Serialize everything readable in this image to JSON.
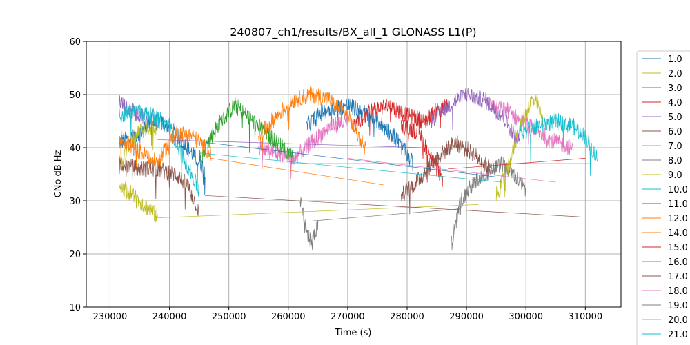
{
  "chart_data": {
    "type": "line",
    "title": "240807_ch1/results/BX_all_1 GLONASS L1(P)",
    "xlabel": "Time (s)",
    "ylabel": "CNo dB Hz",
    "xlim": [
      226000,
      316000
    ],
    "ylim": [
      10,
      60
    ],
    "xticks": [
      230000,
      240000,
      250000,
      260000,
      270000,
      280000,
      290000,
      300000,
      310000
    ],
    "yticks": [
      10,
      20,
      30,
      40,
      50,
      60
    ],
    "grid": true,
    "legend": "right",
    "series": [
      {
        "name": "1.0",
        "color": "#1f77b4",
        "points": [
          [
            231500,
            41
          ],
          [
            234000,
            42
          ],
          [
            236000,
            44
          ],
          [
            238000,
            45
          ],
          [
            240000,
            44
          ],
          [
            243000,
            40
          ],
          [
            246000,
            36
          ]
        ]
      },
      {
        "name": "2.0",
        "color": "#bcbd22",
        "points": [
          [
            231500,
            36
          ],
          [
            233000,
            40
          ],
          [
            235000,
            43
          ],
          [
            237000,
            44
          ],
          [
            238000,
            44
          ]
        ]
      },
      {
        "name": "3.0",
        "color": "#2ca02c",
        "points": [
          [
            245000,
            38
          ],
          [
            248000,
            44
          ],
          [
            251000,
            48
          ],
          [
            253000,
            46
          ],
          [
            256000,
            43
          ],
          [
            259000,
            40
          ],
          [
            261000,
            38
          ]
        ]
      },
      {
        "name": "4.0",
        "color": "#d62728",
        "points": [
          [
            271000,
            44
          ],
          [
            274000,
            47
          ],
          [
            277000,
            48
          ],
          [
            280000,
            46
          ],
          [
            283000,
            45
          ],
          [
            285000,
            47
          ],
          [
            287000,
            48
          ]
        ]
      },
      {
        "name": "5.0",
        "color": "#9467bd",
        "points": [
          [
            231500,
            49
          ],
          [
            233000,
            47
          ],
          [
            236000,
            46
          ],
          [
            238000,
            45
          ]
        ]
      },
      {
        "name": "6.0",
        "color": "#8c564b",
        "points": [
          [
            231500,
            37
          ],
          [
            235000,
            36
          ],
          [
            238000,
            36
          ],
          [
            241000,
            35
          ],
          [
            243000,
            33
          ],
          [
            245000,
            28
          ]
        ]
      },
      {
        "name": "7.0",
        "color": "#e377c2",
        "points": [
          [
            294000,
            48
          ],
          [
            297000,
            47
          ],
          [
            299000,
            45
          ],
          [
            302000,
            43
          ],
          [
            305000,
            41
          ],
          [
            308000,
            40
          ]
        ]
      },
      {
        "name": "8.0",
        "color": "#7f7f7f",
        "points": [
          [
            287500,
            22
          ],
          [
            289000,
            30
          ],
          [
            291000,
            33
          ],
          [
            293000,
            35
          ],
          [
            296000,
            37
          ],
          [
            298000,
            35
          ],
          [
            300000,
            32
          ]
        ]
      },
      {
        "name": "9.0",
        "color": "#bcbd22",
        "points": [
          [
            295000,
            31
          ],
          [
            297000,
            36
          ],
          [
            299000,
            44
          ],
          [
            301000,
            49
          ],
          [
            302000,
            48
          ],
          [
            303000,
            44
          ]
        ]
      },
      {
        "name": "10.0",
        "color": "#17becf",
        "points": [
          [
            231500,
            46
          ],
          [
            234000,
            47
          ],
          [
            237000,
            46
          ],
          [
            240000,
            44
          ],
          [
            242000,
            39
          ],
          [
            245000,
            32
          ]
        ]
      },
      {
        "name": "11.0",
        "color": "#1f77b4",
        "points": [
          [
            263000,
            44
          ],
          [
            266000,
            47
          ],
          [
            270000,
            48
          ],
          [
            274000,
            46
          ],
          [
            278000,
            42
          ],
          [
            281000,
            37
          ]
        ]
      },
      {
        "name": "12.0",
        "color": "#ff7f0e",
        "points": [
          [
            231500,
            42
          ],
          [
            234000,
            40
          ],
          [
            238000,
            37
          ],
          [
            241000,
            43
          ],
          [
            244000,
            42
          ],
          [
            247000,
            39
          ]
        ]
      },
      {
        "name": "14.0",
        "color": "#ff7f0e",
        "points": [
          [
            255000,
            42
          ],
          [
            258000,
            46
          ],
          [
            261000,
            49
          ],
          [
            264000,
            50
          ],
          [
            267000,
            49
          ],
          [
            270000,
            46
          ],
          [
            273000,
            40
          ]
        ]
      },
      {
        "name": "15.0",
        "color": "#d62728",
        "points": [
          [
            279000,
            44
          ],
          [
            282000,
            43
          ],
          [
            284000,
            38
          ],
          [
            286000,
            34
          ]
        ]
      },
      {
        "name": "16.0",
        "color": "#9467bd",
        "points": [
          [
            284000,
            45
          ],
          [
            287000,
            48
          ],
          [
            290000,
            50
          ],
          [
            293000,
            49
          ],
          [
            296000,
            46
          ],
          [
            299000,
            41
          ]
        ]
      },
      {
        "name": "17.0",
        "color": "#8c564b",
        "points": [
          [
            279000,
            31
          ],
          [
            282000,
            34
          ],
          [
            285000,
            38
          ],
          [
            288000,
            41
          ],
          [
            291000,
            39
          ],
          [
            294000,
            36
          ]
        ]
      },
      {
        "name": "18.0",
        "color": "#e377c2",
        "points": [
          [
            255000,
            40
          ],
          [
            258000,
            39
          ],
          [
            261000,
            38
          ],
          [
            264000,
            41
          ],
          [
            267000,
            44
          ],
          [
            270000,
            45
          ]
        ]
      },
      {
        "name": "19.0",
        "color": "#7f7f7f",
        "points": [
          [
            262000,
            30
          ],
          [
            263000,
            24
          ],
          [
            264000,
            22
          ],
          [
            265000,
            26
          ]
        ]
      },
      {
        "name": "20.0",
        "color": "#bcbd22",
        "points": [
          [
            231500,
            33
          ],
          [
            234000,
            31
          ],
          [
            236000,
            29
          ],
          [
            238000,
            27
          ]
        ]
      },
      {
        "name": "21.0",
        "color": "#17becf",
        "points": [
          [
            299000,
            43
          ],
          [
            302000,
            44
          ],
          [
            305000,
            45
          ],
          [
            308000,
            44
          ],
          [
            310000,
            42
          ],
          [
            312000,
            38
          ]
        ]
      }
    ],
    "connectors": [
      {
        "color": "#bcbd22",
        "from": [
          238000,
          26.8
        ],
        "to": [
          292000,
          29.3
        ]
      },
      {
        "color": "#8c564b",
        "from": [
          246000,
          31
        ],
        "to": [
          309000,
          27
        ]
      },
      {
        "color": "#7f7f7f",
        "from": [
          264000,
          26.2
        ],
        "to": [
          289000,
          28.5
        ]
      },
      {
        "color": "#1f77b4",
        "from": [
          246000,
          41
        ],
        "to": [
          295000,
          34.5
        ]
      },
      {
        "color": "#2ca02c",
        "from": [
          261000,
          37
        ],
        "to": [
          311000,
          37
        ]
      },
      {
        "color": "#ff7f0e",
        "from": [
          247000,
          38
        ],
        "to": [
          276000,
          33
        ]
      },
      {
        "color": "#e377c2",
        "from": [
          270000,
          38
        ],
        "to": [
          305000,
          33.5
        ]
      },
      {
        "color": "#17becf",
        "from": [
          245000,
          39
        ],
        "to": [
          296000,
          33.5
        ]
      },
      {
        "color": "#9467bd",
        "from": [
          238000,
          41.5
        ],
        "to": [
          283000,
          40
        ]
      },
      {
        "color": "#d62728",
        "from": [
          287000,
          36
        ],
        "to": [
          310000,
          38
        ]
      }
    ]
  }
}
